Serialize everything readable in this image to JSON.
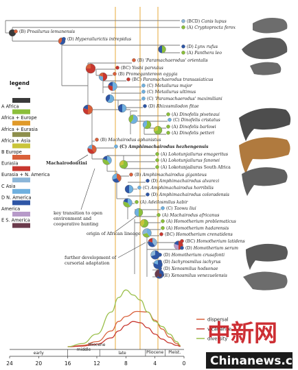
{
  "legend": {
    "title": "legend",
    "star": "*",
    "items": [
      {
        "label": "",
        "color": "#3a3a3a"
      },
      {
        "label": "A Africa",
        "color": "#8bbf3b"
      },
      {
        "label": "Africa + Europe",
        "color": "#e09a2a"
      },
      {
        "label": "Africa + Eurasia",
        "color": "#8e8f4d"
      },
      {
        "label": "Africa + Asia",
        "color": "#c9c43a"
      },
      {
        "label": "B Europe",
        "color": "#d9603a"
      },
      {
        "label": "Eurasia",
        "color": "#c8372f"
      },
      {
        "label": "Eurasia + N. America",
        "color": "#8cb6d8"
      },
      {
        "label": "C Asia",
        "color": "#6fb0df"
      },
      {
        "label": "D N. America",
        "color": "#2e56a6"
      },
      {
        "label": "America",
        "color": "#b79ac9"
      },
      {
        "label": "E S. America",
        "color": "#6b3b4c"
      }
    ]
  },
  "taxa": [
    {
      "code": "(BCD)",
      "name": "Canis lupus",
      "italic": true
    },
    {
      "code": "(A)",
      "name": "Cryptoprocta ferox",
      "italic": true
    },
    {
      "code": "(B)",
      "name": "Proailurus lemanensis",
      "italic": true
    },
    {
      "code": "(D)",
      "name": "Hyperailurictis intrepidus",
      "italic": true
    },
    {
      "code": "(D)",
      "name": "Lynx rufus",
      "italic": true
    },
    {
      "code": "(A)",
      "name": "Panthera leo",
      "italic": true
    },
    {
      "code": "(B)",
      "name": "'Paramachaerodus' orientalis",
      "italic": true
    },
    {
      "code": "(BC)",
      "name": "Yoshi parvulus",
      "italic": true
    },
    {
      "code": "(B)",
      "name": "Promegantereon ogygia",
      "italic": true
    },
    {
      "code": "(BC)",
      "name": "Paramachaerodus transasiaticus",
      "italic": true
    },
    {
      "code": "(C)",
      "name": "Metailurus major",
      "italic": true
    },
    {
      "code": "(C)",
      "name": "Metailurus ultimus",
      "italic": true
    },
    {
      "code": "(C)",
      "name": "'Paramachaerodus' maximiliani",
      "italic": true
    },
    {
      "code": "(D)",
      "name": "Rhizosmilodon fitae",
      "italic": true
    },
    {
      "code": "(A)",
      "name": "Dinofelis piveteaui",
      "italic": true
    },
    {
      "code": "(C)",
      "name": "Dinofelis cristatus",
      "italic": true
    },
    {
      "code": "(A)",
      "name": "Dinofelis barlowi",
      "italic": true
    },
    {
      "code": "(A)",
      "name": "Dinofelis petteri",
      "italic": true
    },
    {
      "code": "(B)",
      "name": "Machairodus aphanistus",
      "italic": true
    },
    {
      "code": "(C)",
      "name": "Amphimachairodus hezhengensis",
      "italic": true,
      "bold": true
    },
    {
      "code": "(A)",
      "name": "Lokotunjailurus emageritus",
      "italic": true
    },
    {
      "code": "(A)",
      "name": "Lokotunjailurus fanonei",
      "italic": true
    },
    {
      "code": "(A)",
      "name": "Lokotunjailurus South Africa",
      "italic": false
    },
    {
      "code": "(B)",
      "name": "Amphimachairodus giganteus",
      "italic": true
    },
    {
      "code": "(D)",
      "name": "Amphimachairodus alvarezi",
      "italic": true
    },
    {
      "code": "(C)",
      "name": "Amphimachairodus horribilis",
      "italic": true
    },
    {
      "code": "(D)",
      "name": "Amphimachairodus coloradensis",
      "italic": true
    },
    {
      "code": "(A)",
      "name": "Adeilosmilus kabir",
      "italic": true
    },
    {
      "code": "(C)",
      "name": "Taowu liui",
      "italic": true
    },
    {
      "code": "(A)",
      "name": "Machairodus africanus",
      "italic": true
    },
    {
      "code": "(A)",
      "name": "Homotherium problematicus",
      "italic": true
    },
    {
      "code": "(A)",
      "name": "Homotherium hadarensis",
      "italic": true
    },
    {
      "code": "(BC)",
      "name": "Homotherium crenatidens",
      "italic": true
    },
    {
      "code": "(BC)",
      "name": "Homotherium latidens",
      "italic": true
    },
    {
      "code": "(D)",
      "name": "Homotherium serum",
      "italic": true
    },
    {
      "code": "(D)",
      "name": "Homotherium crusafonti",
      "italic": true
    },
    {
      "code": "(D)",
      "name": "Ischyrosmilus ischyrus",
      "italic": true
    },
    {
      "code": "(D)",
      "name": "Xenosmilus hodsonae",
      "italic": true
    },
    {
      "code": "(E)",
      "name": "Xenosmilus venezuelensis",
      "italic": true
    }
  ],
  "annotations": {
    "clade": "Machairodontini",
    "note1_line1": "key transition to open",
    "note1_line2": "environment and",
    "note1_line3": "cooperative hunting",
    "note2": "origin of African lineage",
    "note3_line1": "further development of",
    "note3_line2": "cursorial adaptation"
  },
  "chart_data": {
    "type": "line",
    "x_direction": "reversed",
    "xlim": [
      24,
      0
    ],
    "xticks": [
      24,
      20,
      16,
      12,
      8,
      4,
      0
    ],
    "epochs": [
      "early",
      "Miocene",
      "middle",
      "late",
      "Pliocene",
      "Pleist."
    ],
    "series": [
      {
        "name": "dispersal",
        "color": "#d9603a",
        "x": [
          16,
          14,
          12,
          10,
          9,
          8,
          6.5,
          5,
          4,
          3,
          2,
          1,
          0.5
        ],
        "y": [
          0,
          0.02,
          0.08,
          0.25,
          0.4,
          0.48,
          0.56,
          0.55,
          0.42,
          0.28,
          0.15,
          0.05,
          0.01
        ]
      },
      {
        "name": "vicariance",
        "color": "#c8372f",
        "x": [
          16,
          14,
          12,
          10,
          9,
          8,
          7,
          6,
          5,
          4,
          3,
          2,
          1,
          0.5
        ],
        "y": [
          0,
          0.01,
          0.04,
          0.14,
          0.25,
          0.34,
          0.4,
          0.38,
          0.3,
          0.2,
          0.12,
          0.06,
          0.02,
          0.005
        ]
      },
      {
        "name": "diversity",
        "color": "#9abf4a",
        "x": [
          16,
          14,
          12,
          10,
          9,
          8,
          7,
          6,
          5,
          4,
          3,
          2,
          1,
          0.5
        ],
        "y": [
          0,
          0.05,
          0.2,
          0.55,
          0.78,
          0.9,
          0.82,
          0.74,
          0.55,
          0.4,
          0.32,
          0.2,
          0.08,
          0.02
        ]
      }
    ]
  },
  "watermark": {
    "cn": "中新网",
    "en": "Chinanews.com"
  }
}
